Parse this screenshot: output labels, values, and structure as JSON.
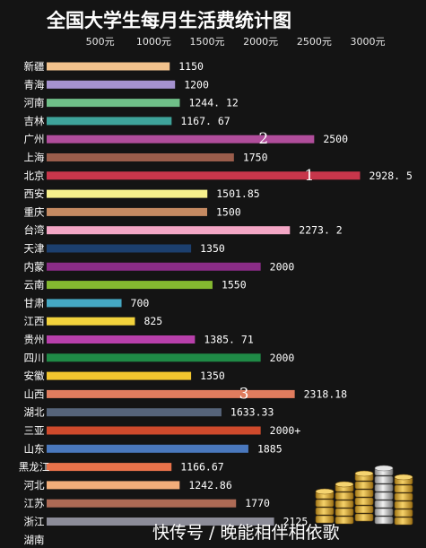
{
  "chart_data": {
    "type": "bar",
    "orientation": "horizontal",
    "title": "全国大学生每月生活费统计图",
    "xlabel": "",
    "ylabel": "",
    "xlim": [
      0,
      3000
    ],
    "tick_values": [
      500,
      1000,
      1500,
      2000,
      2500,
      3000
    ],
    "tick_labels": [
      "500元",
      "1000元",
      "1500元",
      "2000元",
      "2500元",
      "3000元"
    ],
    "grid": false,
    "categories": [
      "新疆",
      "青海",
      "河南",
      "吉林",
      "广州",
      "上海",
      "北京",
      "西安",
      "重庆",
      "台湾",
      "天津",
      "内蒙",
      "云南",
      "甘肃",
      "江西",
      "贵州",
      "四川",
      "安徽",
      "山西",
      "湖北",
      "三亚",
      "山东",
      "黑龙江",
      "河北",
      "江苏",
      "浙江",
      "湖南"
    ],
    "values": [
      1150,
      1200,
      1244.12,
      1167.67,
      2500,
      1750,
      2928.5,
      1501.85,
      1500,
      2273.2,
      1350,
      2000,
      1550,
      700,
      825,
      1385.71,
      2000,
      1350,
      2318.18,
      1633.33,
      2000,
      1885,
      1166.67,
      1242.86,
      1770,
      2125,
      null
    ],
    "value_labels": [
      "1150",
      "1200",
      "1244. 12",
      "1167. 67",
      "2500",
      "1750",
      "2928. 5",
      "1501.85",
      "1500",
      "2273. 2",
      "1350",
      "2000",
      "1550",
      "700",
      "825",
      "1385. 71",
      "2000",
      "1350",
      "2318.18",
      "1633.33",
      "2000+",
      "1885",
      "1166.67",
      "1242.86",
      "1770",
      "2125",
      ""
    ],
    "bar_colors": [
      "#f2c28c",
      "#a592cf",
      "#6fbf88",
      "#3ea39a",
      "#b04d9b",
      "#9a5d4b",
      "#c8364b",
      "#f6f08c",
      "#c58a62",
      "#f3a6c5",
      "#1c3f6e",
      "#8a2c86",
      "#84b830",
      "#45a8c3",
      "#f2d23c",
      "#b73faa",
      "#1f8a46",
      "#f2c52e",
      "#e07c5e",
      "#56647a",
      "#cf4a2c",
      "#4a78bd",
      "#e8724a",
      "#f3ae7a",
      "#ad6a55",
      "#8c8c98",
      "#3aa36b"
    ],
    "annotations": [
      {
        "text": "1",
        "category": "北京"
      },
      {
        "text": "2",
        "category": "广州"
      },
      {
        "text": "3",
        "category": "山西"
      }
    ]
  },
  "watermark": "快传号 / 晚能相伴相依歌"
}
